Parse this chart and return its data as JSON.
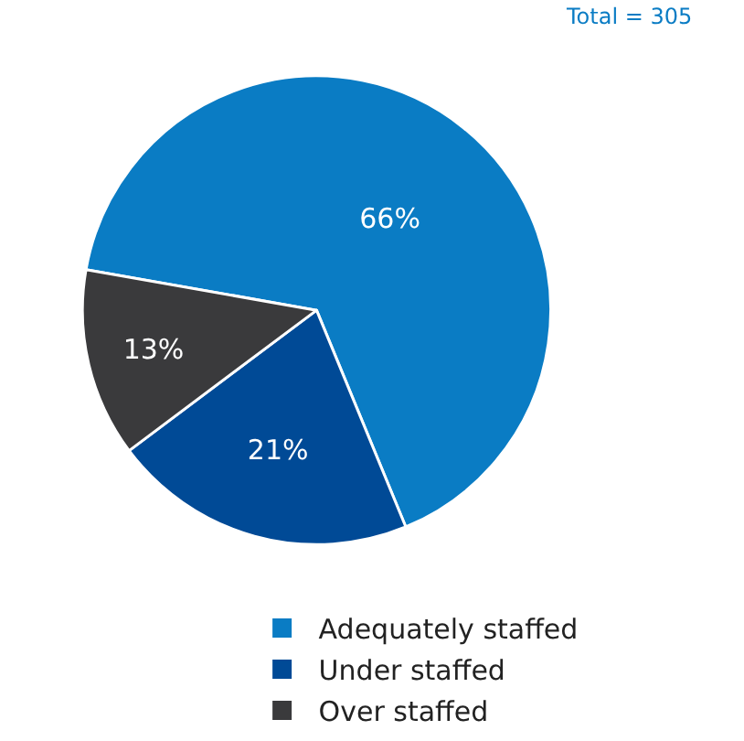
{
  "chart_data": {
    "type": "pie",
    "annotations": [
      "Total = 305"
    ],
    "categories": [
      "Adequately staffed",
      "Under staffed",
      "Over staffed"
    ],
    "values": [
      66,
      21,
      13
    ],
    "colors": [
      "#0a7cc4",
      "#004a96",
      "#3a3a3c"
    ],
    "value_labels": [
      "66%",
      "21%",
      "13%"
    ],
    "legend": "bottom"
  }
}
